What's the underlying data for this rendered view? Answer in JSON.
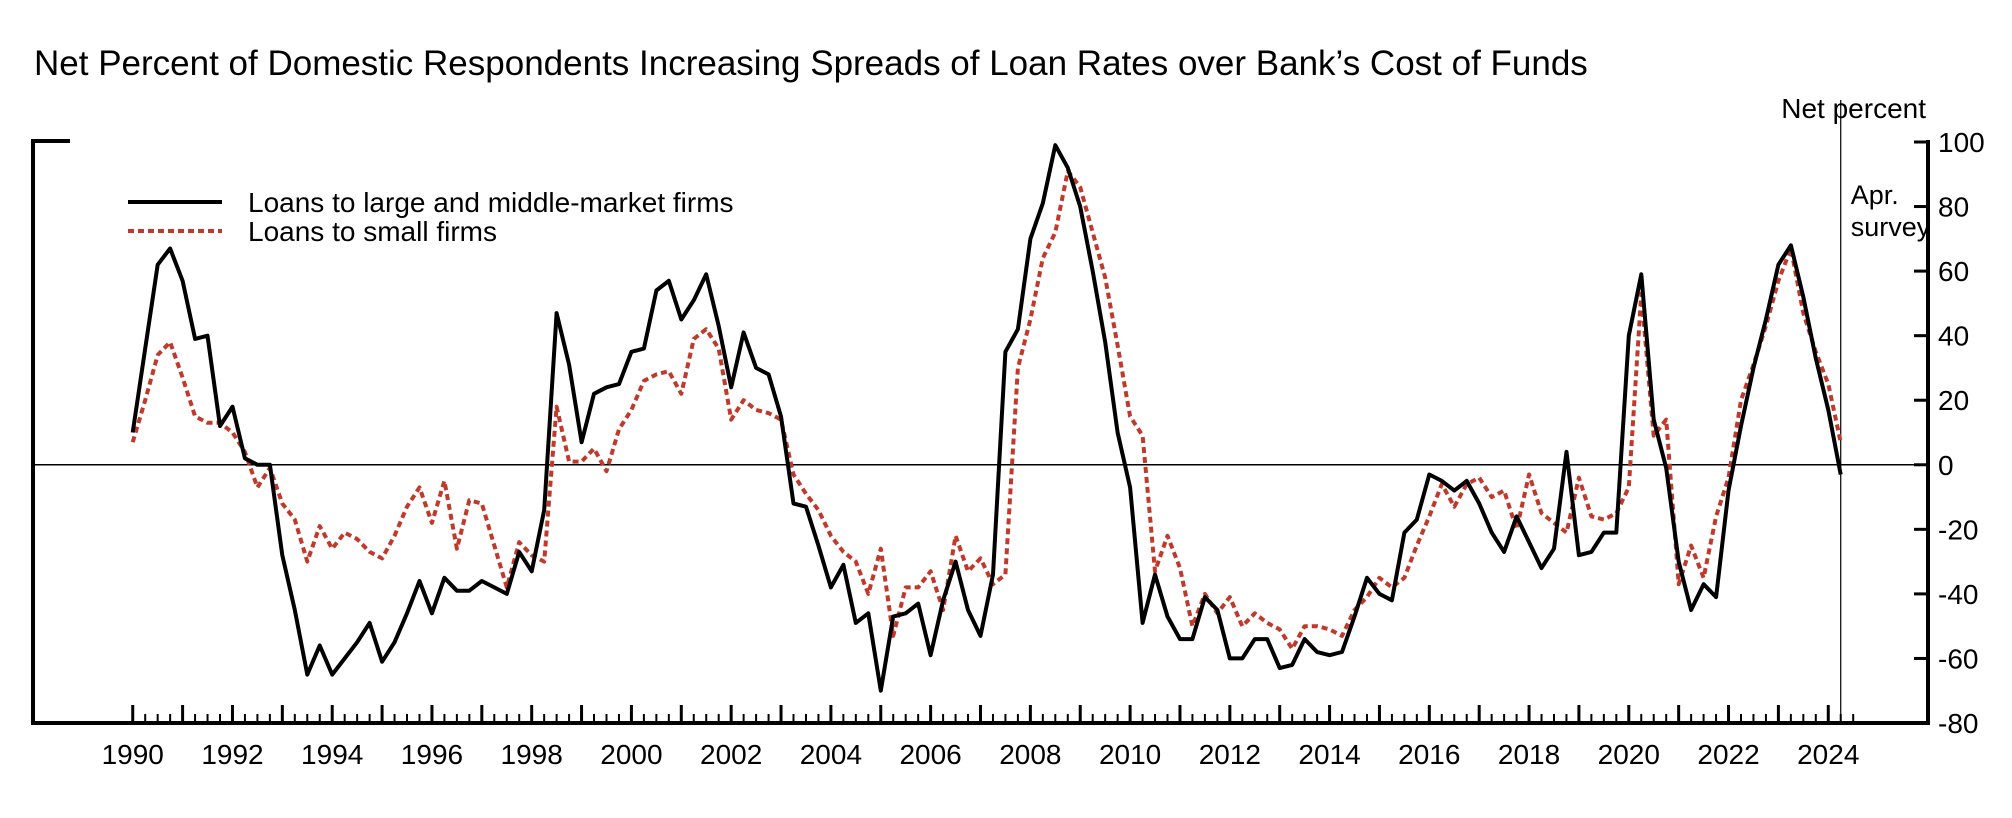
{
  "chart_data": {
    "type": "line",
    "title": "Net Percent of Domestic Respondents Increasing Spreads of Loan Rates over Bank’s Cost of Funds",
    "ylabel": "Net percent",
    "xlabel": "",
    "ylim": [
      -80,
      100
    ],
    "yticks": [
      -80,
      -60,
      -40,
      -20,
      0,
      20,
      40,
      60,
      80,
      100
    ],
    "xlim": [
      1988.0,
      2026.0
    ],
    "xtick_labels": [
      "1990",
      "1992",
      "1994",
      "1996",
      "1998",
      "2000",
      "2002",
      "2004",
      "2006",
      "2008",
      "2010",
      "2012",
      "2014",
      "2016",
      "2018",
      "2020",
      "2022",
      "2024"
    ],
    "legend_position": "top-left",
    "annotation": "Apr.\nsurvey",
    "annotation_x": 2024.25,
    "series": [
      {
        "name": "Loans to large and middle-market firms",
        "style": "solid",
        "color": "#000000",
        "x": [
          1990.0,
          1990.25,
          1990.5,
          1990.75,
          1991.0,
          1991.25,
          1991.5,
          1991.75,
          1992.0,
          1992.25,
          1992.5,
          1992.75,
          1993.0,
          1993.25,
          1993.5,
          1993.75,
          1994.0,
          1994.25,
          1994.5,
          1994.75,
          1995.0,
          1995.25,
          1995.5,
          1995.75,
          1996.0,
          1996.25,
          1996.5,
          1996.75,
          1997.0,
          1997.25,
          1997.5,
          1997.75,
          1998.0,
          1998.25,
          1998.5,
          1998.75,
          1999.0,
          1999.25,
          1999.5,
          1999.75,
          2000.0,
          2000.25,
          2000.5,
          2000.75,
          2001.0,
          2001.25,
          2001.5,
          2001.75,
          2002.0,
          2002.25,
          2002.5,
          2002.75,
          2003.0,
          2003.25,
          2003.5,
          2003.75,
          2004.0,
          2004.25,
          2004.5,
          2004.75,
          2005.0,
          2005.25,
          2005.5,
          2005.75,
          2006.0,
          2006.25,
          2006.5,
          2006.75,
          2007.0,
          2007.25,
          2007.5,
          2007.75,
          2008.0,
          2008.25,
          2008.5,
          2008.75,
          2009.0,
          2009.25,
          2009.5,
          2009.75,
          2010.0,
          2010.25,
          2010.5,
          2010.75,
          2011.0,
          2011.25,
          2011.5,
          2011.75,
          2012.0,
          2012.25,
          2012.5,
          2012.75,
          2013.0,
          2013.25,
          2013.5,
          2013.75,
          2014.0,
          2014.25,
          2014.5,
          2014.75,
          2015.0,
          2015.25,
          2015.5,
          2015.75,
          2016.0,
          2016.25,
          2016.5,
          2016.75,
          2017.0,
          2017.25,
          2017.5,
          2017.75,
          2018.0,
          2018.25,
          2018.5,
          2018.75,
          2019.0,
          2019.25,
          2019.5,
          2019.75,
          2020.0,
          2020.25,
          2020.5,
          2020.75,
          2021.0,
          2021.25,
          2021.5,
          2021.75,
          2022.0,
          2022.25,
          2022.5,
          2022.75,
          2023.0,
          2023.25,
          2023.5,
          2023.75,
          2024.0,
          2024.25
        ],
        "values": [
          10,
          36,
          62,
          67,
          57,
          39,
          40,
          12,
          18,
          2,
          0,
          0,
          -28,
          -45,
          -65,
          -56,
          -65,
          -60,
          -55,
          -49,
          -61,
          -55,
          -46,
          -36,
          -46,
          -35,
          -39,
          -39,
          -36,
          -38,
          -40,
          -27,
          -33,
          -14,
          47,
          31,
          7,
          22,
          24,
          25,
          35,
          36,
          54,
          57,
          45,
          51,
          59,
          43,
          24,
          41,
          30,
          28,
          15,
          -12,
          -13,
          -25,
          -38,
          -31,
          -49,
          -46,
          -70,
          -47,
          -46,
          -43,
          -59,
          -42,
          -30,
          -45,
          -53,
          -34,
          35,
          42,
          70,
          81,
          99,
          92,
          80,
          60,
          38,
          10,
          -7,
          -49,
          -34,
          -47,
          -54,
          -54,
          -41,
          -45,
          -60,
          -60,
          -54,
          -54,
          -63,
          -62,
          -54,
          -58,
          -59,
          -58,
          -47,
          -35,
          -40,
          -42,
          -21,
          -17,
          -3,
          -5,
          -8,
          -5,
          -12,
          -21,
          -27,
          -16,
          -24,
          -32,
          -26,
          4,
          -28,
          -27,
          -21,
          -21,
          40,
          59,
          14,
          -1,
          -30,
          -45,
          -37,
          -41,
          -8,
          12,
          30,
          45,
          62,
          68,
          52,
          33,
          17,
          -3
        ]
      },
      {
        "name": "Loans to small firms",
        "style": "dotted",
        "color": "#c0392b",
        "x": [
          1990.0,
          1990.25,
          1990.5,
          1990.75,
          1991.0,
          1991.25,
          1991.5,
          1991.75,
          1992.0,
          1992.25,
          1992.5,
          1992.75,
          1993.0,
          1993.25,
          1993.5,
          1993.75,
          1994.0,
          1994.25,
          1994.5,
          1994.75,
          1995.0,
          1995.25,
          1995.5,
          1995.75,
          1996.0,
          1996.25,
          1996.5,
          1996.75,
          1997.0,
          1997.25,
          1997.5,
          1997.75,
          1998.0,
          1998.25,
          1998.5,
          1998.75,
          1999.0,
          1999.25,
          1999.5,
          1999.75,
          2000.0,
          2000.25,
          2000.5,
          2000.75,
          2001.0,
          2001.25,
          2001.5,
          2001.75,
          2002.0,
          2002.25,
          2002.5,
          2002.75,
          2003.0,
          2003.25,
          2003.5,
          2003.75,
          2004.0,
          2004.25,
          2004.5,
          2004.75,
          2005.0,
          2005.25,
          2005.5,
          2005.75,
          2006.0,
          2006.25,
          2006.5,
          2006.75,
          2007.0,
          2007.25,
          2007.5,
          2007.75,
          2008.0,
          2008.25,
          2008.5,
          2008.75,
          2009.0,
          2009.25,
          2009.5,
          2009.75,
          2010.0,
          2010.25,
          2010.5,
          2010.75,
          2011.0,
          2011.25,
          2011.5,
          2011.75,
          2012.0,
          2012.25,
          2012.5,
          2012.75,
          2013.0,
          2013.25,
          2013.5,
          2013.75,
          2014.0,
          2014.25,
          2014.5,
          2014.75,
          2015.0,
          2015.25,
          2015.5,
          2015.75,
          2016.0,
          2016.25,
          2016.5,
          2016.75,
          2017.0,
          2017.25,
          2017.5,
          2017.75,
          2018.0,
          2018.25,
          2018.5,
          2018.75,
          2019.0,
          2019.25,
          2019.5,
          2019.75,
          2020.0,
          2020.25,
          2020.5,
          2020.75,
          2021.0,
          2021.25,
          2021.5,
          2021.75,
          2022.0,
          2022.25,
          2022.5,
          2022.75,
          2023.0,
          2023.25,
          2023.5,
          2023.75,
          2024.0,
          2024.25
        ],
        "values": [
          7,
          20,
          34,
          38,
          27,
          15,
          13,
          13,
          10,
          4,
          -7,
          -1,
          -12,
          -17,
          -30,
          -19,
          -26,
          -21,
          -23,
          -27,
          -29,
          -22,
          -13,
          -7,
          -18,
          -5,
          -26,
          -11,
          -12,
          -25,
          -38,
          -24,
          -28,
          -30,
          18,
          1,
          1,
          5,
          -2,
          11,
          17,
          26,
          28,
          29,
          22,
          39,
          42,
          36,
          14,
          20,
          17,
          16,
          14,
          -3,
          -9,
          -14,
          -22,
          -27,
          -30,
          -40,
          -26,
          -53,
          -38,
          -38,
          -33,
          -45,
          -22,
          -33,
          -29,
          -37,
          -34,
          30,
          45,
          64,
          72,
          91,
          86,
          72,
          58,
          37,
          15,
          9,
          -33,
          -22,
          -32,
          -50,
          -40,
          -46,
          -41,
          -50,
          -46,
          -49,
          -51,
          -57,
          -50,
          -50,
          -51,
          -53,
          -45,
          -41,
          -35,
          -38,
          -35,
          -25,
          -16,
          -6,
          -13,
          -6,
          -4,
          -10,
          -8,
          -20,
          -3,
          -15,
          -18,
          -21,
          -4,
          -16,
          -17,
          -15,
          -7,
          53,
          9,
          14,
          -37,
          -25,
          -35,
          -16,
          -4,
          20,
          31,
          43,
          57,
          67,
          47,
          35,
          25,
          7
        ]
      }
    ]
  }
}
